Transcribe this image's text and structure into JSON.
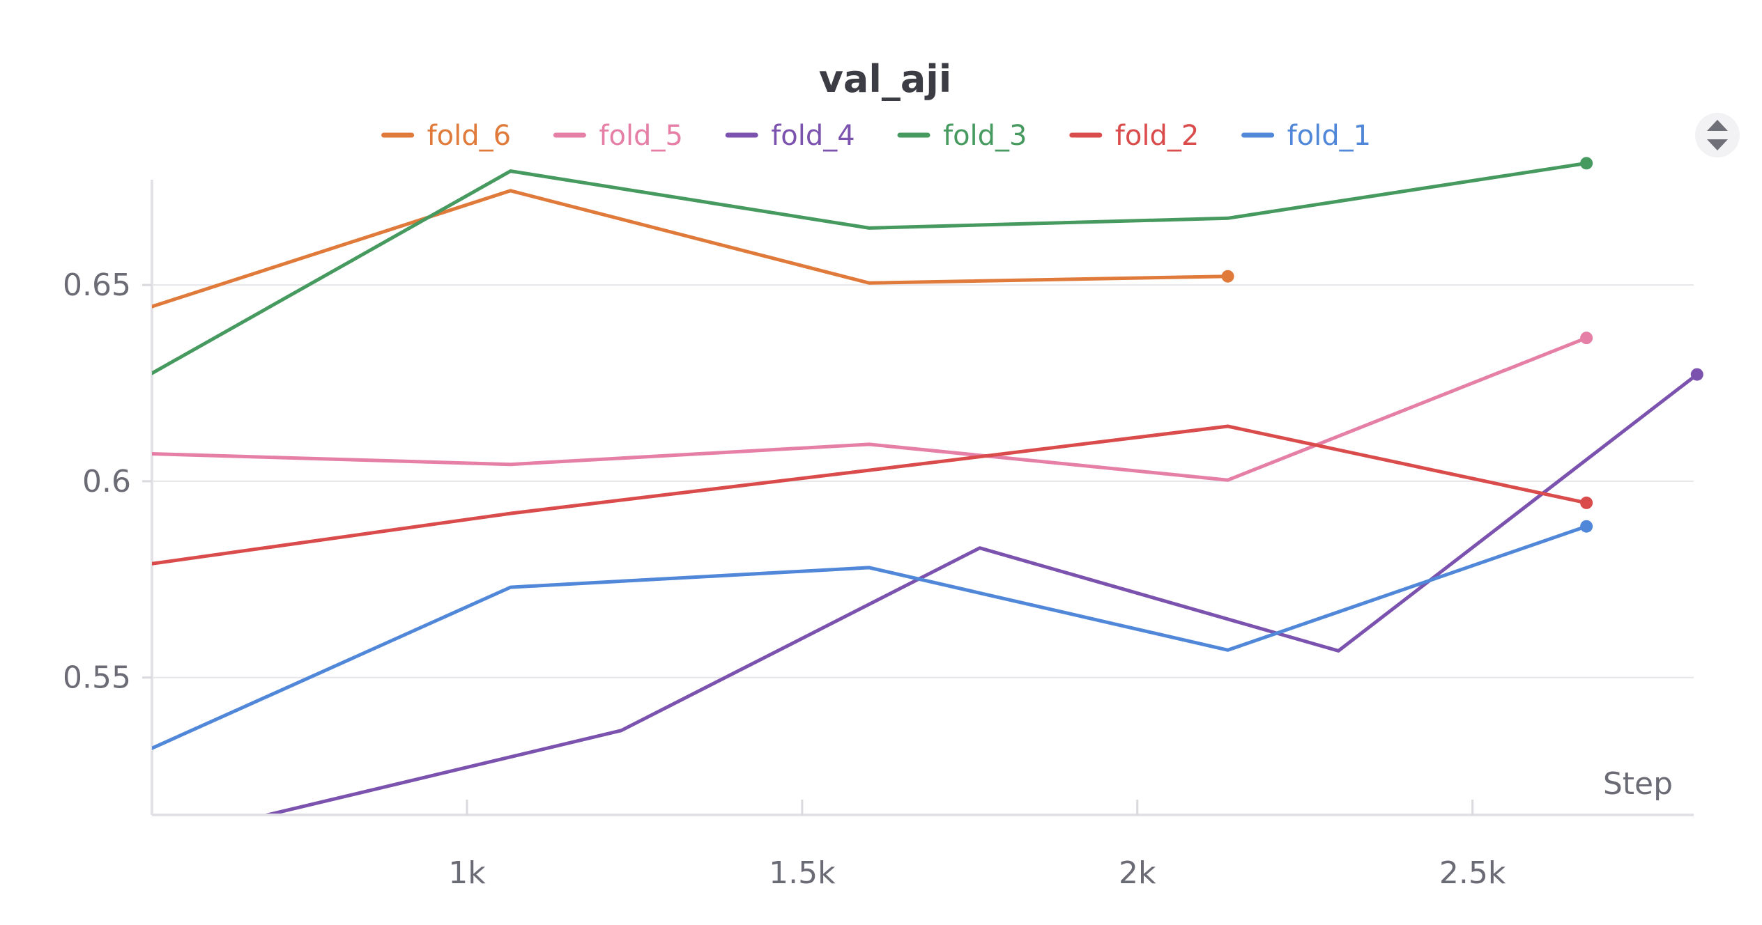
{
  "chart_data": {
    "type": "line",
    "title": "val_aji",
    "xlabel": "Step",
    "ylabel": "",
    "xlim": [
      530,
      2830
    ],
    "ylim": [
      0.515,
      0.68
    ],
    "x_ticks": [
      {
        "value": 1000,
        "label": "1k"
      },
      {
        "value": 1500,
        "label": "1.5k"
      },
      {
        "value": 2000,
        "label": "2k"
      },
      {
        "value": 2500,
        "label": "2.5k"
      }
    ],
    "y_ticks": [
      {
        "value": 0.55,
        "label": "0.55"
      },
      {
        "value": 0.6,
        "label": "0.6"
      },
      {
        "value": 0.65,
        "label": "0.65"
      }
    ],
    "grid": true,
    "legend_position": "top",
    "series": [
      {
        "name": "fold_6",
        "color": "#e07a3a",
        "end_marker": true,
        "points": [
          [
            530,
            0.6445
          ],
          [
            1065,
            0.674
          ],
          [
            1600,
            0.6505
          ],
          [
            2135,
            0.6522
          ]
        ]
      },
      {
        "name": "fold_5",
        "color": "#e57fa5",
        "end_marker": true,
        "points": [
          [
            530,
            0.607
          ],
          [
            1065,
            0.6043
          ],
          [
            1600,
            0.6094
          ],
          [
            2135,
            0.6003
          ],
          [
            2670,
            0.6365
          ]
        ]
      },
      {
        "name": "fold_4",
        "color": "#7b52ae",
        "end_marker": true,
        "points": [
          [
            530,
            0.508
          ],
          [
            1230,
            0.5365
          ],
          [
            1765,
            0.583
          ],
          [
            2300,
            0.5568
          ],
          [
            2835,
            0.6272
          ]
        ]
      },
      {
        "name": "fold_3",
        "color": "#479a5f",
        "end_marker": true,
        "points": [
          [
            530,
            0.6275
          ],
          [
            1065,
            0.679
          ],
          [
            1600,
            0.6645
          ],
          [
            2135,
            0.667
          ],
          [
            2670,
            0.681
          ]
        ]
      },
      {
        "name": "fold_2",
        "color": "#da4c4c",
        "end_marker": true,
        "points": [
          [
            530,
            0.579
          ],
          [
            1065,
            0.5918
          ],
          [
            1600,
            0.6028
          ],
          [
            2135,
            0.614
          ],
          [
            2670,
            0.5945
          ]
        ]
      },
      {
        "name": "fold_1",
        "color": "#5087d8",
        "end_marker": true,
        "points": [
          [
            530,
            0.532
          ],
          [
            1065,
            0.573
          ],
          [
            1600,
            0.578
          ],
          [
            2135,
            0.557
          ],
          [
            2670,
            0.5885
          ]
        ]
      }
    ]
  },
  "ui": {
    "collapse_icon": "chevron-toggle-icon"
  }
}
